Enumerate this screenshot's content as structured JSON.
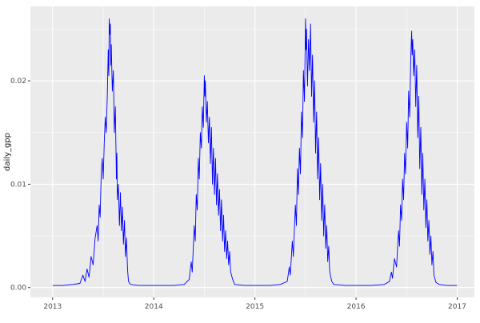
{
  "chart_data": {
    "type": "line",
    "title": "",
    "xlabel": "",
    "ylabel": "daily_gpp",
    "legend": "none",
    "grid": "on",
    "panel_bg": "#ebebeb",
    "grid_color": "#ffffff",
    "line_color": "#0000ff",
    "tick_color": "#333333",
    "x_domain": [
      2012.78,
      2017.17
    ],
    "y_domain": [
      -0.00095,
      0.0272
    ],
    "xticks": {
      "values": [
        2013,
        2014,
        2015,
        2016,
        2017
      ],
      "labels": [
        "2013",
        "2014",
        "2015",
        "2016",
        "2017"
      ]
    },
    "yticks": {
      "values": [
        0.0,
        0.01,
        0.02
      ],
      "labels": [
        "0.00",
        "0.01",
        "0.02"
      ]
    },
    "x_minor": [
      2013.5,
      2014.5,
      2015.5,
      2016.5
    ],
    "y_minor": [
      0.005,
      0.015,
      0.025
    ],
    "series": [
      {
        "name": "daily_gpp",
        "points": [
          [
            2013.0,
            0.0002
          ],
          [
            2013.1,
            0.0002
          ],
          [
            2013.2,
            0.0003
          ],
          [
            2013.27,
            0.0004
          ],
          [
            2013.3,
            0.0012
          ],
          [
            2013.32,
            0.0006
          ],
          [
            2013.34,
            0.0018
          ],
          [
            2013.36,
            0.001
          ],
          [
            2013.38,
            0.003
          ],
          [
            2013.4,
            0.0022
          ],
          [
            2013.42,
            0.0048
          ],
          [
            2013.44,
            0.006
          ],
          [
            2013.45,
            0.0045
          ],
          [
            2013.46,
            0.008
          ],
          [
            2013.47,
            0.0068
          ],
          [
            2013.48,
            0.011
          ],
          [
            2013.49,
            0.0125
          ],
          [
            2013.5,
            0.0105
          ],
          [
            2013.51,
            0.014
          ],
          [
            2013.52,
            0.0165
          ],
          [
            2013.53,
            0.015
          ],
          [
            2013.54,
            0.0185
          ],
          [
            2013.55,
            0.023
          ],
          [
            2013.555,
            0.0205
          ],
          [
            2013.56,
            0.026
          ],
          [
            2013.565,
            0.0245
          ],
          [
            2013.57,
            0.0255
          ],
          [
            2013.575,
            0.0215
          ],
          [
            2013.58,
            0.0235
          ],
          [
            2013.59,
            0.019
          ],
          [
            2013.6,
            0.021
          ],
          [
            2013.61,
            0.015
          ],
          [
            2013.62,
            0.0175
          ],
          [
            2013.63,
            0.0105
          ],
          [
            2013.635,
            0.013
          ],
          [
            2013.64,
            0.0085
          ],
          [
            2013.65,
            0.01
          ],
          [
            2013.66,
            0.006
          ],
          [
            2013.67,
            0.0092
          ],
          [
            2013.68,
            0.0055
          ],
          [
            2013.69,
            0.0078
          ],
          [
            2013.7,
            0.0042
          ],
          [
            2013.71,
            0.0065
          ],
          [
            2013.72,
            0.003
          ],
          [
            2013.73,
            0.0048
          ],
          [
            2013.74,
            0.0018
          ],
          [
            2013.75,
            0.0006
          ],
          [
            2013.77,
            0.0003
          ],
          [
            2013.85,
            0.0002
          ],
          [
            2013.95,
            0.0002
          ],
          [
            2014.05,
            0.0002
          ],
          [
            2014.2,
            0.0002
          ],
          [
            2014.3,
            0.0003
          ],
          [
            2014.35,
            0.0008
          ],
          [
            2014.37,
            0.0025
          ],
          [
            2014.38,
            0.0015
          ],
          [
            2014.4,
            0.006
          ],
          [
            2014.41,
            0.0045
          ],
          [
            2014.42,
            0.009
          ],
          [
            2014.43,
            0.0075
          ],
          [
            2014.44,
            0.0125
          ],
          [
            2014.45,
            0.0105
          ],
          [
            2014.46,
            0.015
          ],
          [
            2014.47,
            0.0135
          ],
          [
            2014.48,
            0.0175
          ],
          [
            2014.49,
            0.0155
          ],
          [
            2014.5,
            0.0205
          ],
          [
            2014.505,
            0.0185
          ],
          [
            2014.51,
            0.02
          ],
          [
            2014.52,
            0.016
          ],
          [
            2014.53,
            0.018
          ],
          [
            2014.54,
            0.014
          ],
          [
            2014.55,
            0.0165
          ],
          [
            2014.56,
            0.012
          ],
          [
            2014.57,
            0.0155
          ],
          [
            2014.58,
            0.01
          ],
          [
            2014.59,
            0.0135
          ],
          [
            2014.6,
            0.009
          ],
          [
            2014.61,
            0.0125
          ],
          [
            2014.62,
            0.008
          ],
          [
            2014.63,
            0.011
          ],
          [
            2014.64,
            0.007
          ],
          [
            2014.65,
            0.0095
          ],
          [
            2014.66,
            0.0055
          ],
          [
            2014.67,
            0.0085
          ],
          [
            2014.68,
            0.0045
          ],
          [
            2014.69,
            0.007
          ],
          [
            2014.7,
            0.0035
          ],
          [
            2014.71,
            0.0055
          ],
          [
            2014.72,
            0.0028
          ],
          [
            2014.73,
            0.0045
          ],
          [
            2014.74,
            0.0022
          ],
          [
            2014.75,
            0.0035
          ],
          [
            2014.76,
            0.0015
          ],
          [
            2014.78,
            0.0008
          ],
          [
            2014.8,
            0.0003
          ],
          [
            2014.9,
            0.0002
          ],
          [
            2015.0,
            0.0002
          ],
          [
            2015.15,
            0.0002
          ],
          [
            2015.25,
            0.0003
          ],
          [
            2015.32,
            0.0006
          ],
          [
            2015.34,
            0.002
          ],
          [
            2015.35,
            0.0012
          ],
          [
            2015.37,
            0.0045
          ],
          [
            2015.38,
            0.003
          ],
          [
            2015.4,
            0.008
          ],
          [
            2015.41,
            0.006
          ],
          [
            2015.42,
            0.0115
          ],
          [
            2015.43,
            0.009
          ],
          [
            2015.44,
            0.0135
          ],
          [
            2015.45,
            0.011
          ],
          [
            2015.46,
            0.017
          ],
          [
            2015.47,
            0.0145
          ],
          [
            2015.48,
            0.021
          ],
          [
            2015.49,
            0.018
          ],
          [
            2015.5,
            0.026
          ],
          [
            2015.505,
            0.023
          ],
          [
            2015.51,
            0.025
          ],
          [
            2015.52,
            0.0195
          ],
          [
            2015.53,
            0.024
          ],
          [
            2015.54,
            0.021
          ],
          [
            2015.55,
            0.0255
          ],
          [
            2015.56,
            0.0185
          ],
          [
            2015.57,
            0.0225
          ],
          [
            2015.58,
            0.016
          ],
          [
            2015.59,
            0.02
          ],
          [
            2015.6,
            0.013
          ],
          [
            2015.61,
            0.017
          ],
          [
            2015.62,
            0.0105
          ],
          [
            2015.63,
            0.0145
          ],
          [
            2015.64,
            0.0085
          ],
          [
            2015.65,
            0.012
          ],
          [
            2015.66,
            0.0065
          ],
          [
            2015.67,
            0.01
          ],
          [
            2015.68,
            0.005
          ],
          [
            2015.69,
            0.008
          ],
          [
            2015.7,
            0.0038
          ],
          [
            2015.71,
            0.006
          ],
          [
            2015.72,
            0.0025
          ],
          [
            2015.73,
            0.004
          ],
          [
            2015.74,
            0.0015
          ],
          [
            2015.76,
            0.0006
          ],
          [
            2015.78,
            0.0003
          ],
          [
            2015.9,
            0.0002
          ],
          [
            2016.0,
            0.0002
          ],
          [
            2016.15,
            0.0002
          ],
          [
            2016.28,
            0.0003
          ],
          [
            2016.33,
            0.0006
          ],
          [
            2016.35,
            0.0015
          ],
          [
            2016.36,
            0.0009
          ],
          [
            2016.38,
            0.0028
          ],
          [
            2016.4,
            0.002
          ],
          [
            2016.42,
            0.0055
          ],
          [
            2016.43,
            0.004
          ],
          [
            2016.44,
            0.008
          ],
          [
            2016.45,
            0.0065
          ],
          [
            2016.46,
            0.0105
          ],
          [
            2016.47,
            0.0085
          ],
          [
            2016.48,
            0.013
          ],
          [
            2016.49,
            0.011
          ],
          [
            2016.5,
            0.016
          ],
          [
            2016.51,
            0.0135
          ],
          [
            2016.52,
            0.019
          ],
          [
            2016.53,
            0.0165
          ],
          [
            2016.54,
            0.022
          ],
          [
            2016.55,
            0.0248
          ],
          [
            2016.555,
            0.0225
          ],
          [
            2016.56,
            0.024
          ],
          [
            2016.57,
            0.0205
          ],
          [
            2016.58,
            0.023
          ],
          [
            2016.59,
            0.0175
          ],
          [
            2016.6,
            0.0215
          ],
          [
            2016.61,
            0.0145
          ],
          [
            2016.62,
            0.0185
          ],
          [
            2016.63,
            0.0115
          ],
          [
            2016.64,
            0.0155
          ],
          [
            2016.65,
            0.009
          ],
          [
            2016.66,
            0.013
          ],
          [
            2016.67,
            0.0075
          ],
          [
            2016.68,
            0.0105
          ],
          [
            2016.69,
            0.0058
          ],
          [
            2016.7,
            0.0085
          ],
          [
            2016.71,
            0.0045
          ],
          [
            2016.72,
            0.0065
          ],
          [
            2016.73,
            0.0032
          ],
          [
            2016.74,
            0.005
          ],
          [
            2016.75,
            0.0022
          ],
          [
            2016.76,
            0.0035
          ],
          [
            2016.77,
            0.0012
          ],
          [
            2016.79,
            0.0005
          ],
          [
            2016.82,
            0.0003
          ],
          [
            2016.9,
            0.0002
          ],
          [
            2017.0,
            0.0002
          ]
        ]
      }
    ]
  }
}
